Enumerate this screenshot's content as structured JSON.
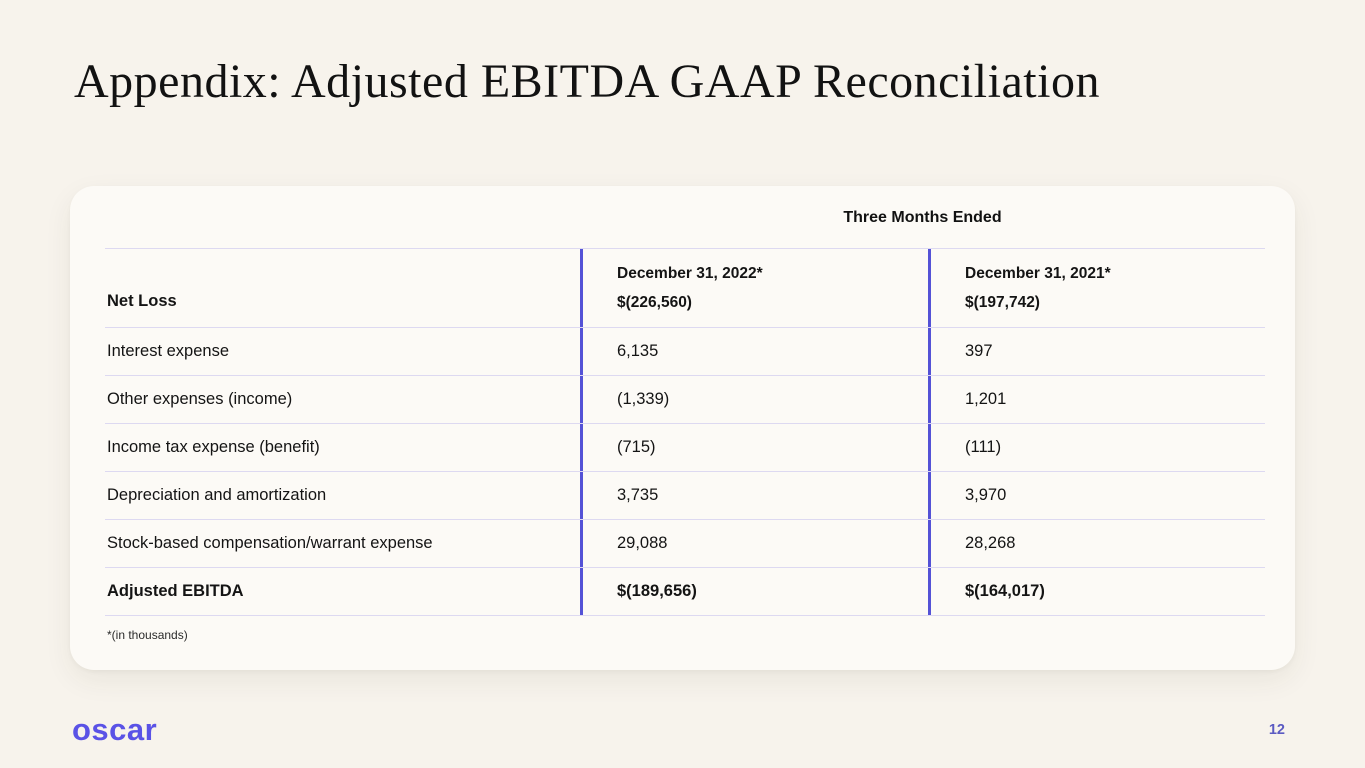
{
  "slide": {
    "title": "Appendix: Adjusted EBITDA GAAP Reconciliation",
    "page_number": "12",
    "logo_text": "oscar"
  },
  "table": {
    "group_header": "Three Months Ended",
    "header": {
      "row_label": "Net Loss",
      "col_2022": {
        "date": "December 31, 2022*",
        "value": "$(226,560)"
      },
      "col_2021": {
        "date": "December 31, 2021*",
        "value": "$(197,742)"
      }
    },
    "rows": [
      {
        "label": "Interest expense",
        "v2022": "6,135",
        "v2021": "397"
      },
      {
        "label": "Other expenses (income)",
        "v2022": "(1,339)",
        "v2021": "1,201"
      },
      {
        "label": "Income tax expense (benefit)",
        "v2022": "(715)",
        "v2021": "(111)"
      },
      {
        "label": "Depreciation and amortization",
        "v2022": "3,735",
        "v2021": "3,970"
      },
      {
        "label": "Stock-based compensation/warrant expense",
        "v2022": "29,088",
        "v2021": "28,268"
      }
    ],
    "total_row": {
      "label": "Adjusted EBITDA",
      "v2022": "$(189,656)",
      "v2021": "$(164,017)"
    },
    "footnote": "*(in thousands)"
  },
  "colors": {
    "background": "#f7f3ec",
    "card_background": "#fcfaf6",
    "accent_indigo_separator": "#5452d6",
    "row_divider_lavender": "#ddd9f1",
    "brand_purple": "#5a52e6",
    "page_number_indigo": "#5b5ac2",
    "text": "#141414"
  }
}
